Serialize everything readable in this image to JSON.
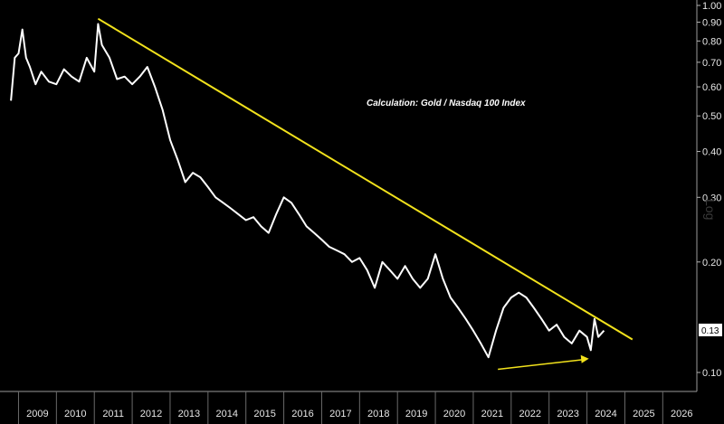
{
  "chart_data": {
    "type": "line",
    "title": "",
    "xlabel": "",
    "ylabel": "",
    "scale": "log",
    "annotation": "Calculation: Gold / Nasdaq 100 Index",
    "scale_label": "Log",
    "last_value_label": "0.13",
    "x_ticks": [
      "2009",
      "2010",
      "2011",
      "2012",
      "2013",
      "2014",
      "2015",
      "2016",
      "2017",
      "2018",
      "2019",
      "2020",
      "2021",
      "2022",
      "2023",
      "2024",
      "2025",
      "2026"
    ],
    "y_ticks": [
      {
        "value": 1.0,
        "label": "1.00"
      },
      {
        "value": 0.9,
        "label": "0.90"
      },
      {
        "value": 0.8,
        "label": "0.80"
      },
      {
        "value": 0.7,
        "label": "0.70"
      },
      {
        "value": 0.6,
        "label": "0.60"
      },
      {
        "value": 0.5,
        "label": "0.50"
      },
      {
        "value": 0.4,
        "label": "0.40"
      },
      {
        "value": 0.3,
        "label": "0.30"
      },
      {
        "value": 0.2,
        "label": "0.20"
      },
      {
        "value": 0.1,
        "label": "0.10"
      }
    ],
    "xlim": [
      2008.75,
      2026.9
    ],
    "ylim": [
      0.085,
      1.0
    ],
    "colors": {
      "series": "#ffffff",
      "trendline": "#f2e21c",
      "background": "#000000",
      "axis": "#b4b4b4"
    },
    "series": [
      {
        "x": [
          2008.8,
          2008.9,
          2009.0,
          2009.1,
          2009.2,
          2009.3,
          2009.45,
          2009.6,
          2009.8,
          2010.0,
          2010.2,
          2010.4,
          2010.6,
          2010.8,
          2011.0,
          2011.1,
          2011.2,
          2011.4,
          2011.6,
          2011.8,
          2012.0,
          2012.2,
          2012.4,
          2012.6,
          2012.8,
          2013.0,
          2013.2,
          2013.4,
          2013.6,
          2013.8,
          2014.0,
          2014.2,
          2014.4,
          2014.6,
          2014.8,
          2015.0,
          2015.2,
          2015.4,
          2015.6,
          2015.8,
          2016.0,
          2016.2,
          2016.4,
          2016.6,
          2016.8,
          2017.0,
          2017.2,
          2017.4,
          2017.6,
          2017.8,
          2018.0,
          2018.2,
          2018.4,
          2018.6,
          2018.8,
          2019.0,
          2019.2,
          2019.4,
          2019.6,
          2019.8,
          2020.0,
          2020.2,
          2020.4,
          2020.6,
          2020.8,
          2021.0,
          2021.2,
          2021.4,
          2021.6,
          2021.8,
          2022.0,
          2022.2,
          2022.4,
          2022.6,
          2022.8,
          2023.0,
          2023.2,
          2023.4,
          2023.6,
          2023.8,
          2024.0,
          2024.1,
          2024.2,
          2024.3,
          2024.45
        ],
        "values": [
          0.55,
          0.72,
          0.74,
          0.86,
          0.72,
          0.68,
          0.61,
          0.66,
          0.62,
          0.61,
          0.67,
          0.64,
          0.62,
          0.72,
          0.66,
          0.89,
          0.78,
          0.72,
          0.63,
          0.64,
          0.61,
          0.64,
          0.68,
          0.6,
          0.52,
          0.43,
          0.38,
          0.33,
          0.35,
          0.34,
          0.32,
          0.3,
          0.29,
          0.28,
          0.27,
          0.26,
          0.265,
          0.25,
          0.24,
          0.27,
          0.3,
          0.29,
          0.27,
          0.25,
          0.24,
          0.23,
          0.22,
          0.215,
          0.21,
          0.2,
          0.205,
          0.19,
          0.17,
          0.2,
          0.19,
          0.18,
          0.195,
          0.18,
          0.17,
          0.18,
          0.21,
          0.18,
          0.16,
          0.15,
          0.14,
          0.13,
          0.12,
          0.11,
          0.13,
          0.15,
          0.16,
          0.165,
          0.16,
          0.15,
          0.14,
          0.13,
          0.135,
          0.125,
          0.12,
          0.13,
          0.125,
          0.115,
          0.14,
          0.125,
          0.13
        ]
      }
    ],
    "trendline": {
      "x": [
        2011.1,
        2025.2
      ],
      "values": [
        0.92,
        0.123
      ]
    },
    "arrow": {
      "x": [
        2021.65,
        2024.05
      ],
      "values": [
        0.102,
        0.109
      ]
    }
  }
}
